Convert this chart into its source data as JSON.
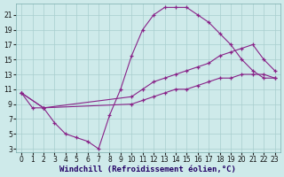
{
  "xlabel": "Windchill (Refroidissement éolien,°C)",
  "bg_color": "#ceeaea",
  "grid_color": "#a8cece",
  "line_color": "#882288",
  "xlim": [
    -0.5,
    23.5
  ],
  "ylim": [
    2.5,
    22.5
  ],
  "xticks": [
    0,
    1,
    2,
    3,
    4,
    5,
    6,
    7,
    8,
    9,
    10,
    11,
    12,
    13,
    14,
    15,
    16,
    17,
    18,
    19,
    20,
    21,
    22,
    23
  ],
  "yticks": [
    3,
    5,
    7,
    9,
    11,
    13,
    15,
    17,
    19,
    21
  ],
  "line1_x": [
    0,
    1,
    2,
    3,
    4,
    5,
    6,
    7,
    8,
    9,
    10,
    11,
    12,
    13,
    14,
    15,
    16,
    17,
    18,
    19,
    20,
    21,
    22,
    23
  ],
  "line1_y": [
    10.5,
    8.5,
    8.5,
    6.5,
    5.0,
    4.5,
    4.0,
    3.0,
    7.5,
    11.0,
    15.5,
    19.0,
    21.0,
    22.0,
    22.0,
    22.0,
    21.0,
    20.0,
    18.5,
    17.0,
    15.0,
    13.5,
    12.5,
    12.5
  ],
  "line2_x": [
    0,
    2,
    10,
    11,
    12,
    13,
    14,
    15,
    16,
    17,
    18,
    19,
    20,
    21,
    22,
    23
  ],
  "line2_y": [
    10.5,
    8.5,
    10.0,
    11.0,
    12.0,
    12.5,
    13.0,
    13.5,
    14.0,
    14.5,
    15.5,
    16.0,
    16.5,
    17.0,
    15.0,
    13.5
  ],
  "line3_x": [
    0,
    2,
    10,
    11,
    12,
    13,
    14,
    15,
    16,
    17,
    18,
    19,
    20,
    21,
    22,
    23
  ],
  "line3_y": [
    10.5,
    8.5,
    9.0,
    9.5,
    10.0,
    10.5,
    11.0,
    11.0,
    11.5,
    12.0,
    12.5,
    12.5,
    13.0,
    13.0,
    13.0,
    12.5
  ],
  "xlabel_fontsize": 6.5,
  "tick_fontsize": 5.5,
  "marker": "+",
  "markersize": 3.5,
  "lw": 0.8
}
